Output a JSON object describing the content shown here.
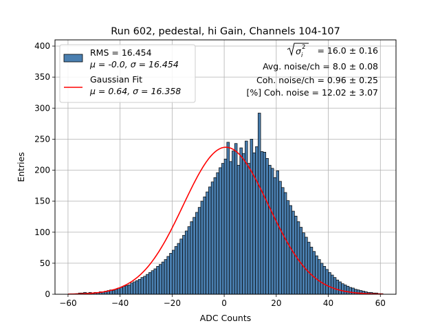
{
  "chart_data": {
    "type": "bar",
    "title": "Run 602, pedestal, hi Gain, Channels 104-107",
    "xlabel": "ADC Counts",
    "ylabel": "Entries",
    "xlim": [
      -65,
      66
    ],
    "ylim": [
      0,
      410
    ],
    "grid": true,
    "legend_position": "top-left",
    "xticks": [
      -60,
      -40,
      -20,
      0,
      20,
      40,
      60
    ],
    "yticks": [
      0,
      50,
      100,
      150,
      200,
      250,
      300,
      350,
      400
    ],
    "colors": {
      "bars": "#4a7fb0",
      "fit": "#ff0000",
      "grid": "#b0b0b0"
    },
    "histogram": {
      "bin_width": 1,
      "bin_start": -60,
      "counts": [
        0,
        0,
        0,
        1,
        2,
        2,
        3,
        2,
        3,
        2,
        3,
        2,
        4,
        4,
        5,
        6,
        7,
        6,
        8,
        10,
        11,
        13,
        14,
        15,
        18,
        20,
        22,
        24,
        27,
        29,
        32,
        35,
        38,
        41,
        45,
        48,
        52,
        56,
        61,
        66,
        71,
        77,
        82,
        89,
        95,
        102,
        109,
        117,
        124,
        132,
        140,
        150,
        157,
        165,
        173,
        181,
        188,
        196,
        204,
        211,
        218,
        245,
        214,
        231,
        243,
        208,
        236,
        227,
        247,
        211,
        250,
        228,
        238,
        292,
        230,
        229,
        219,
        208,
        203,
        188,
        199,
        182,
        172,
        164,
        151,
        143,
        134,
        126,
        117,
        108,
        99,
        92,
        84,
        76,
        69,
        62,
        56,
        50,
        45,
        40,
        35,
        31,
        27,
        23,
        20,
        17,
        15,
        13,
        11,
        10,
        8,
        7,
        6,
        5,
        4,
        3,
        3,
        2,
        2,
        1,
        1
      ]
    },
    "legend": [
      {
        "label_line1": "RMS = 16.454",
        "label_line2": "μ = -0.0, σ = 16.454",
        "kind": "patch"
      },
      {
        "label_line1": "Gaussian Fit",
        "label_line2": "μ = 0.64, σ = 16.358",
        "kind": "line"
      }
    ],
    "gaussian_fit": {
      "mu": 0.64,
      "sigma": 16.358,
      "amplitude": 237
    },
    "annotations": {
      "line1": "= 16.0 ± 0.16",
      "line2": "Avg. noise/ch = 8.0 ± 0.08",
      "line3": "Coh. noise/ch = 0.96 ± 0.25",
      "line4": "[%] Coh. noise = 12.02 ± 3.07"
    }
  }
}
